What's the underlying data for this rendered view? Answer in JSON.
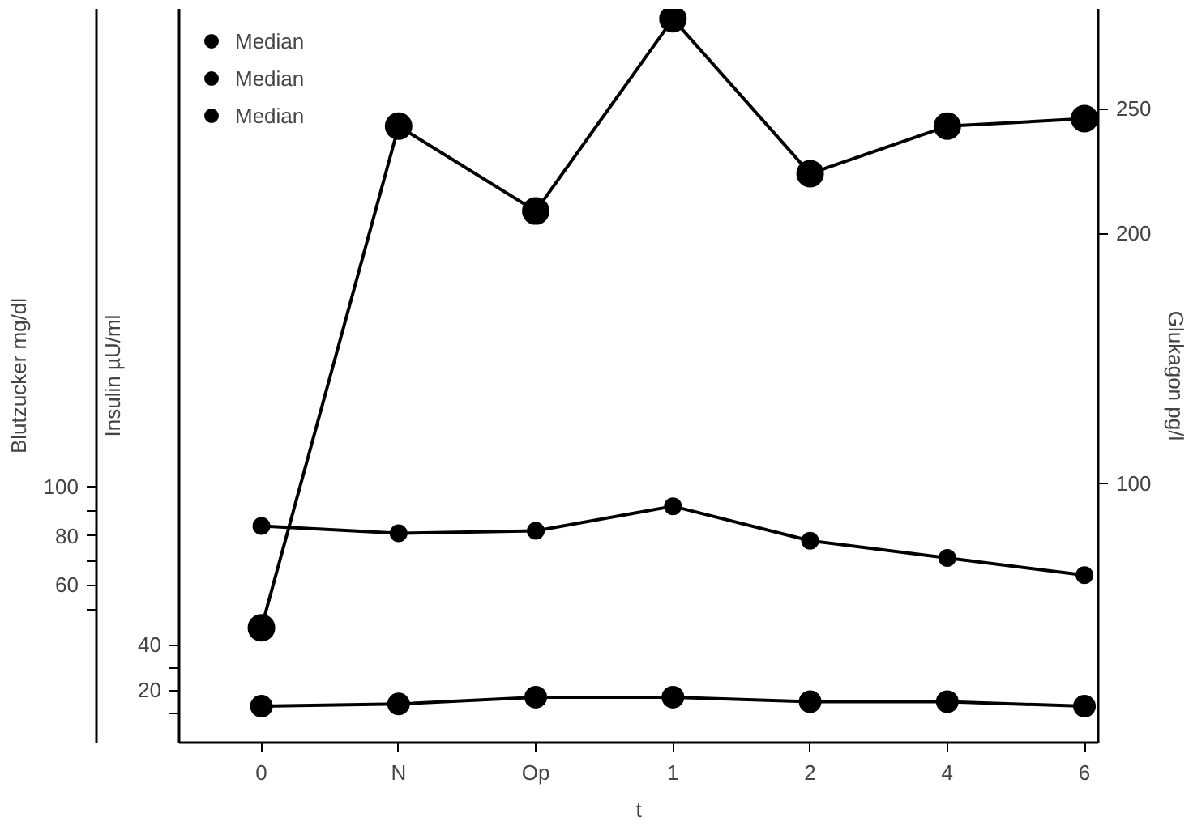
{
  "chart_data": {
    "type": "line",
    "categories": [
      "0",
      "N",
      "Op",
      "1",
      "2",
      "4",
      "6"
    ],
    "xlabel": "t",
    "ylabel": "Insulin µU/ml",
    "y2label": "Blutzucker mg/dl",
    "y3label": "Glukagon pg/l",
    "ylim": [
      -3,
      320
    ],
    "yticks": [
      20,
      40
    ],
    "y2lim": [
      -4,
      294
    ],
    "y2ticks": [
      60,
      80,
      100
    ],
    "y3lim": [
      -4,
      290
    ],
    "y3ticks": [
      100,
      200,
      250
    ],
    "series": [
      {
        "name": "Median",
        "color": "#000000",
        "axis": "y3",
        "values": [
          42,
          243,
          209,
          286,
          224,
          243,
          246
        ]
      },
      {
        "name": "Median",
        "color": "#000000",
        "axis": "y2",
        "values": [
          84,
          81,
          82,
          92,
          78,
          71,
          64
        ]
      },
      {
        "name": "Median",
        "color": "#000000",
        "axis": "y",
        "values": [
          13,
          14,
          17,
          17,
          15,
          15,
          13
        ]
      }
    ],
    "marker": "circle",
    "line_style": "solid",
    "grid": false,
    "legend": "top left"
  }
}
